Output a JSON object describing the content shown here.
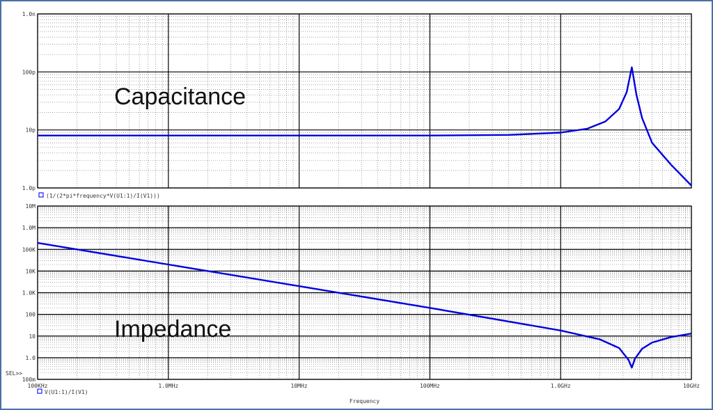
{
  "chart_data": [
    {
      "type": "line",
      "title": "",
      "annotation": "Capacitance",
      "xscale": "log",
      "yscale": "log",
      "xlim": [
        100000,
        10000000000
      ],
      "ylim": [
        1e-12,
        1e-09
      ],
      "grid": true,
      "yticks": [
        {
          "value": 1e-09,
          "label": "1.0n"
        },
        {
          "value": 1e-10,
          "label": "100p"
        },
        {
          "value": 1e-11,
          "label": "10p"
        },
        {
          "value": 1e-12,
          "label": "1.0p"
        }
      ],
      "legend": {
        "label": "(1/(2*pi*frequency*V(U1:1)/I(V1)))",
        "marker_color": "#1a1aff"
      },
      "series": [
        {
          "color": "#0000dd",
          "x": [
            100000,
            1000000,
            10000000,
            100000000,
            400000000,
            1000000000,
            1600000000,
            2200000000,
            2800000000,
            3200000000,
            3500000000,
            3800000000,
            4200000000,
            5000000000,
            7000000000,
            10000000000
          ],
          "y": [
            8e-12,
            8e-12,
            8e-12,
            8e-12,
            8.2e-12,
            9e-12,
            1.05e-11,
            1.4e-11,
            2.3e-11,
            4.5e-11,
            1.2e-10,
            4e-11,
            1.6e-11,
            6e-12,
            2.5e-12,
            1.1e-12
          ]
        }
      ]
    },
    {
      "type": "line",
      "title": "",
      "annotation": "Impedance",
      "xscale": "log",
      "yscale": "log",
      "xlim": [
        100000,
        10000000000
      ],
      "ylim": [
        0.1,
        10000000
      ],
      "grid": true,
      "yticks": [
        {
          "value": 10000000,
          "label": "10M"
        },
        {
          "value": 1000000,
          "label": "1.0M"
        },
        {
          "value": 100000,
          "label": "100K"
        },
        {
          "value": 10000,
          "label": "10K"
        },
        {
          "value": 1000,
          "label": "1.0K"
        },
        {
          "value": 100,
          "label": "100"
        },
        {
          "value": 10,
          "label": "10"
        },
        {
          "value": 1,
          "label": "1.0"
        },
        {
          "value": 0.1,
          "label": "100m"
        }
      ],
      "xticks": [
        {
          "value": 100000,
          "label": "100KHz"
        },
        {
          "value": 1000000,
          "label": "1.0MHz"
        },
        {
          "value": 10000000,
          "label": "10MHz"
        },
        {
          "value": 100000000,
          "label": "100MHz"
        },
        {
          "value": 1000000000,
          "label": "1.0GHz"
        },
        {
          "value": 10000000000,
          "label": "10GHz"
        }
      ],
      "xlabel": "Frequency",
      "sel_marker": "SEL>>",
      "legend": {
        "label": "V(U1:1)/I(V1)",
        "marker_color": "#1a1aff"
      },
      "series": [
        {
          "color": "#0000dd",
          "x": [
            100000,
            1000000,
            10000000,
            100000000,
            1000000000,
            2000000000,
            2800000000,
            3300000000,
            3500000000,
            3700000000,
            4200000000,
            5000000000,
            7000000000,
            10000000000
          ],
          "y": [
            200000,
            20000,
            2000,
            200,
            18,
            7,
            2.8,
            0.8,
            0.35,
            0.9,
            2.6,
            5,
            9,
            13
          ]
        }
      ]
    }
  ]
}
